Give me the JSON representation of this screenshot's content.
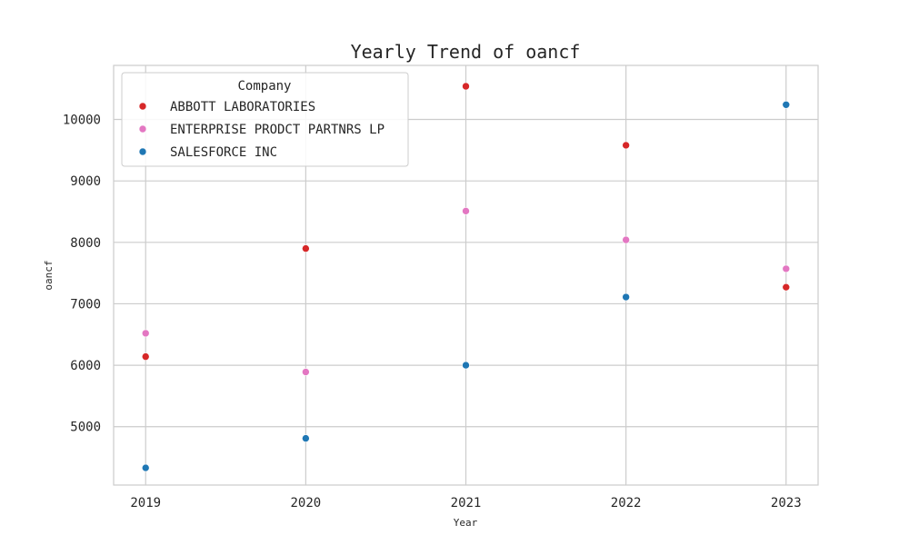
{
  "chart_data": {
    "type": "scatter",
    "title": "Yearly Trend of oancf",
    "xlabel": "Year",
    "ylabel": "oancf",
    "x": [
      2019,
      2020,
      2021,
      2022,
      2023
    ],
    "x_tick_labels": [
      "2019",
      "2020",
      "2021",
      "2022",
      "2023"
    ],
    "xlim": [
      2018.8,
      2023.2
    ],
    "y_ticks": [
      5000,
      6000,
      7000,
      8000,
      9000,
      10000
    ],
    "y_tick_labels": [
      "5000",
      "6000",
      "7000",
      "8000",
      "9000",
      "10000"
    ],
    "ylim": [
      4050,
      10880
    ],
    "grid": true,
    "legend": {
      "title": "Company",
      "placement": "top-left"
    },
    "series": [
      {
        "name": "ABBOTT LABORATORIES",
        "color": "#d62728",
        "values": [
          6140,
          7900,
          10540,
          9580,
          7270
        ]
      },
      {
        "name": "ENTERPRISE PRODCT PARTNRS LP",
        "color": "#e377c2",
        "values": [
          6520,
          5890,
          8510,
          8040,
          7570
        ]
      },
      {
        "name": "SALESFORCE INC",
        "color": "#1f77b4",
        "values": [
          4330,
          4810,
          6000,
          7110,
          10240
        ]
      }
    ]
  }
}
